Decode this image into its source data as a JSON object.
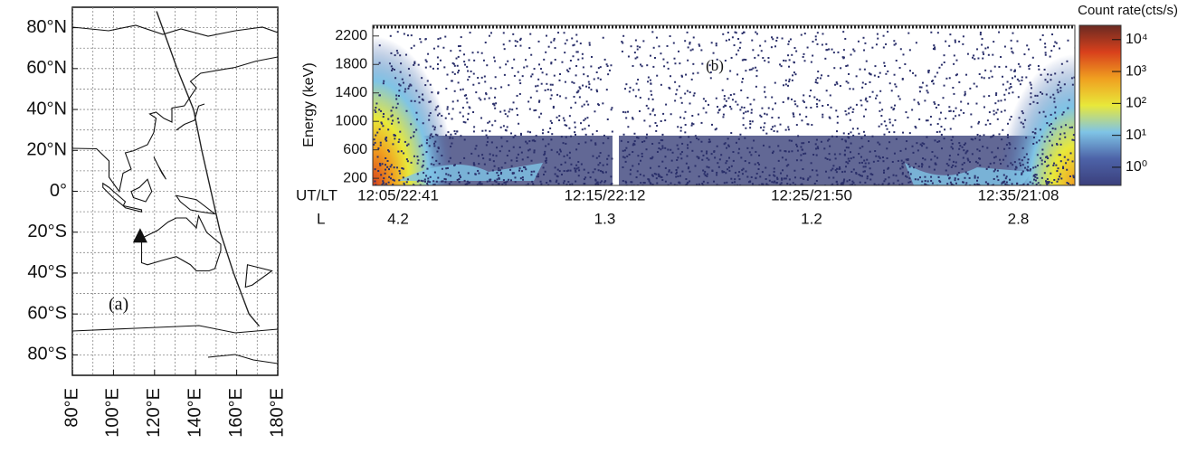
{
  "chart_data": [
    {
      "type": "map",
      "annotation": "(a)",
      "xlim": [
        80,
        180
      ],
      "xticks": [
        {
          "value": 80,
          "label": "80°E"
        },
        {
          "value": 100,
          "label": "100°E"
        },
        {
          "value": 120,
          "label": "120°E"
        },
        {
          "value": 140,
          "label": "140°E"
        },
        {
          "value": 160,
          "label": "160°E"
        },
        {
          "value": 180,
          "label": "180°E"
        }
      ],
      "ylim": [
        -90,
        90
      ],
      "yticks": [
        {
          "value": 80,
          "label": "80°N"
        },
        {
          "value": 60,
          "label": "60°N"
        },
        {
          "value": 40,
          "label": "40°N"
        },
        {
          "value": 20,
          "label": "20°N"
        },
        {
          "value": 0,
          "label": "0°"
        },
        {
          "value": -20,
          "label": "20°S"
        },
        {
          "value": -40,
          "label": "40°S"
        },
        {
          "value": -60,
          "label": "60°S"
        },
        {
          "value": -80,
          "label": "80°S"
        }
      ],
      "grid": true,
      "track": {
        "lon": [
          121,
          131,
          139,
          143,
          147.5,
          152,
          158.5,
          166,
          171
        ],
        "lat": [
          88,
          60,
          40,
          20,
          0,
          -20,
          -40,
          -60,
          -66
        ]
      },
      "marker": {
        "lon": 113,
        "lat": -22
      }
    },
    {
      "type": "spectrogram",
      "annotation": "(b)",
      "ylabel": "Energy (keV)",
      "ylim": [
        100,
        2350
      ],
      "yticks": [
        200,
        600,
        1000,
        1400,
        1800,
        2200
      ],
      "x_row_label": "UT/LT",
      "x_labels": [
        "12:05/22:41",
        "12:15/22:12",
        "12:25/21:50",
        "12:35/21:08"
      ],
      "l_row_label": "L",
      "l_values": [
        4.2,
        1.3,
        1.2,
        2.8
      ],
      "colorbar": {
        "title": "Count rate(cts/s)",
        "log": true,
        "clim": [
          0.27,
          28000
        ],
        "ticks": [
          {
            "value": 1,
            "label": "10⁰"
          },
          {
            "value": 10,
            "label": "10¹"
          },
          {
            "value": 100,
            "label": "10²"
          },
          {
            "value": 1000,
            "label": "10³"
          },
          {
            "value": 10000,
            "label": "10⁴"
          }
        ],
        "colors": [
          "#3b3f7c",
          "#4d63a8",
          "#7fc4e6",
          "#e8e83a",
          "#f0a020",
          "#d8401c",
          "#6a2a22"
        ]
      }
    }
  ]
}
